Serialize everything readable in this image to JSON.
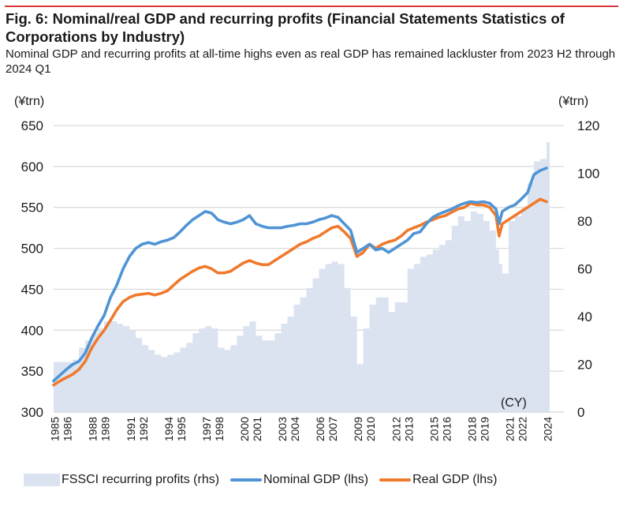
{
  "header": {
    "title": "Fig. 6: Nominal/real GDP and recurring profits (Financial Statements Statistics of Corporations by Industry)",
    "subtitle": "Nominal GDP and recurring profits at all-time highs even as real GDP has remained lackluster from 2023 H2 through 2024 Q1"
  },
  "colors": {
    "nominal": "#4f94d4",
    "real": "#ef7a2d",
    "profits": "#dbe3f1",
    "grid": "#d9d9d9",
    "accent_rule": "#d9393b"
  },
  "chart_data": {
    "type": "line",
    "title": "Fig. 6: Nominal/real GDP and recurring profits (Financial Statements Statistics of Corporations by Industry)",
    "xlabel": "(CY)",
    "ylabel_left": "(¥trn)",
    "ylabel_right": "(¥trn)",
    "ylim_left": [
      300,
      650
    ],
    "ylim_right": [
      0,
      120
    ],
    "yticks_left": [
      "650",
      "600",
      "550",
      "500",
      "450",
      "400",
      "350",
      "300"
    ],
    "yticks_right": [
      "120",
      "100",
      "80",
      "60",
      "40",
      "20",
      "0"
    ],
    "xlim": [
      1985,
      2024.25
    ],
    "xticks": [
      "1985",
      "1986",
      "1988",
      "1989",
      "1991",
      "1992",
      "1994",
      "1995",
      "1997",
      "1998",
      "2000",
      "2001",
      "2003",
      "2004",
      "2006",
      "2007",
      "2009",
      "2010",
      "2012",
      "2013",
      "2015",
      "2016",
      "2018",
      "2019",
      "2021",
      "2022",
      "2024"
    ],
    "grid": true,
    "legend_position": "bottom",
    "x": [
      1985,
      1985.5,
      1986,
      1986.5,
      1987,
      1987.5,
      1988,
      1988.5,
      1989,
      1989.5,
      1990,
      1990.5,
      1991,
      1991.5,
      1992,
      1992.5,
      1993,
      1993.5,
      1994,
      1994.5,
      1995,
      1995.5,
      1996,
      1996.5,
      1997,
      1997.5,
      1998,
      1998.5,
      1999,
      1999.5,
      2000,
      2000.5,
      2001,
      2001.5,
      2002,
      2002.5,
      2003,
      2003.5,
      2004,
      2004.5,
      2005,
      2005.5,
      2006,
      2006.5,
      2007,
      2007.5,
      2008,
      2008.5,
      2009,
      2009.5,
      2010,
      2010.5,
      2011,
      2011.5,
      2012,
      2012.5,
      2013,
      2013.5,
      2014,
      2014.5,
      2015,
      2015.5,
      2016,
      2016.5,
      2017,
      2017.5,
      2018,
      2018.5,
      2019,
      2019.5,
      2020,
      2020.25,
      2020.5,
      2021,
      2021.5,
      2022,
      2022.5,
      2023,
      2023.5,
      2024
    ],
    "series": [
      {
        "name": "FSSCI recurring profits (rhs)",
        "axis": "right",
        "kind": "area",
        "values": [
          21,
          21,
          21,
          22,
          27,
          30,
          33,
          35,
          38,
          38,
          37,
          36,
          34,
          31,
          28,
          26,
          24,
          23,
          24,
          25,
          27,
          29,
          33,
          35,
          36,
          35,
          27,
          26,
          28,
          32,
          36,
          38,
          32,
          30,
          30,
          33,
          37,
          40,
          45,
          48,
          52,
          56,
          60,
          62,
          63,
          62,
          52,
          40,
          20,
          35,
          45,
          48,
          48,
          42,
          46,
          46,
          60,
          62,
          65,
          66,
          68,
          70,
          72,
          78,
          82,
          80,
          84,
          83,
          80,
          76,
          68,
          62,
          58,
          80,
          82,
          86,
          96,
          105,
          106,
          113
        ]
      },
      {
        "name": "Nominal GDP (lhs)",
        "axis": "left",
        "kind": "line",
        "values": [
          338,
          345,
          352,
          358,
          362,
          372,
          390,
          405,
          418,
          440,
          455,
          475,
          490,
          500,
          505,
          507,
          505,
          508,
          510,
          513,
          520,
          528,
          535,
          540,
          545,
          543,
          535,
          532,
          530,
          532,
          535,
          540,
          530,
          527,
          525,
          525,
          525,
          527,
          528,
          530,
          530,
          532,
          535,
          537,
          540,
          538,
          530,
          522,
          495,
          500,
          505,
          498,
          500,
          495,
          500,
          505,
          510,
          518,
          520,
          530,
          538,
          542,
          545,
          548,
          552,
          555,
          557,
          556,
          557,
          555,
          548,
          530,
          545,
          550,
          553,
          560,
          568,
          590,
          595,
          598
        ]
      },
      {
        "name": "Real GDP (lhs)",
        "axis": "left",
        "kind": "line",
        "values": [
          333,
          338,
          342,
          346,
          352,
          362,
          378,
          390,
          400,
          412,
          425,
          435,
          440,
          443,
          444,
          445,
          443,
          445,
          448,
          455,
          462,
          467,
          472,
          476,
          478,
          475,
          470,
          470,
          472,
          477,
          482,
          485,
          482,
          480,
          480,
          485,
          490,
          495,
          500,
          505,
          508,
          512,
          515,
          520,
          525,
          527,
          520,
          512,
          490,
          495,
          505,
          500,
          505,
          508,
          510,
          515,
          522,
          525,
          528,
          532,
          535,
          538,
          540,
          544,
          548,
          550,
          555,
          553,
          553,
          550,
          540,
          515,
          530,
          535,
          540,
          545,
          550,
          555,
          560,
          557
        ]
      }
    ]
  }
}
